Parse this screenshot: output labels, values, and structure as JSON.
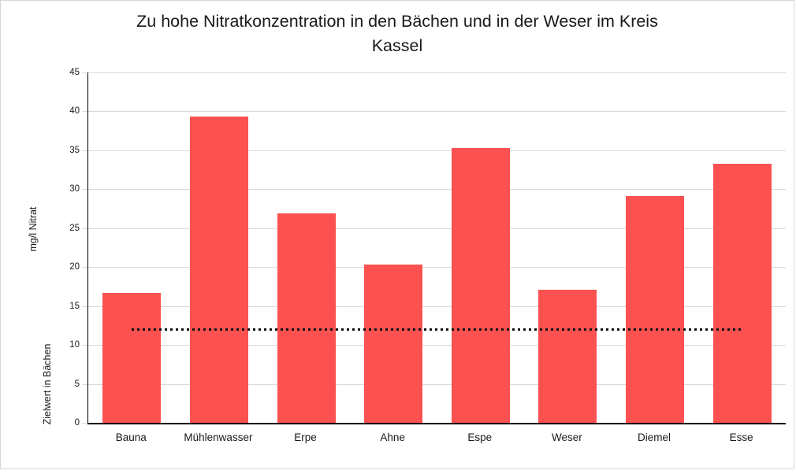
{
  "frame": {
    "background": "#ffffff",
    "border_color": "#d6d6d6"
  },
  "chart_data": {
    "type": "bar",
    "title": "Zu hohe Nitratkonzentration in den Bächen und in der Weser im Kreis Kassel",
    "title_lines": [
      "Zu hohe Nitratkonzentration in den Bächen und in der Weser im Kreis",
      "Kassel"
    ],
    "categories": [
      "Bauna",
      "Mühlenwasser",
      "Erpe",
      "Ahne",
      "Espe",
      "Weser",
      "Diemel",
      "Esse"
    ],
    "values": [
      16.7,
      39.3,
      26.9,
      20.3,
      35.3,
      17.1,
      29.1,
      33.3
    ],
    "series_name": "mg/l Nitrat",
    "bar_color": "#fb5151",
    "target_line": {
      "value": 12,
      "label": "Zielwert in Bächen",
      "color": "#111111",
      "style": "dotted"
    },
    "y_axis": {
      "min": 0,
      "max": 45,
      "step": 5,
      "tick_labels": [
        "0",
        "5",
        "10",
        "15",
        "20",
        "25",
        "30",
        "35",
        "40",
        "45"
      ],
      "label_upper": "mg/l Nitrat",
      "label_lower": "Zielwert in Bächen"
    },
    "x_axis": {
      "label": ""
    },
    "grid": "horizontal",
    "legend": "none",
    "ylim": [
      0,
      45
    ]
  }
}
